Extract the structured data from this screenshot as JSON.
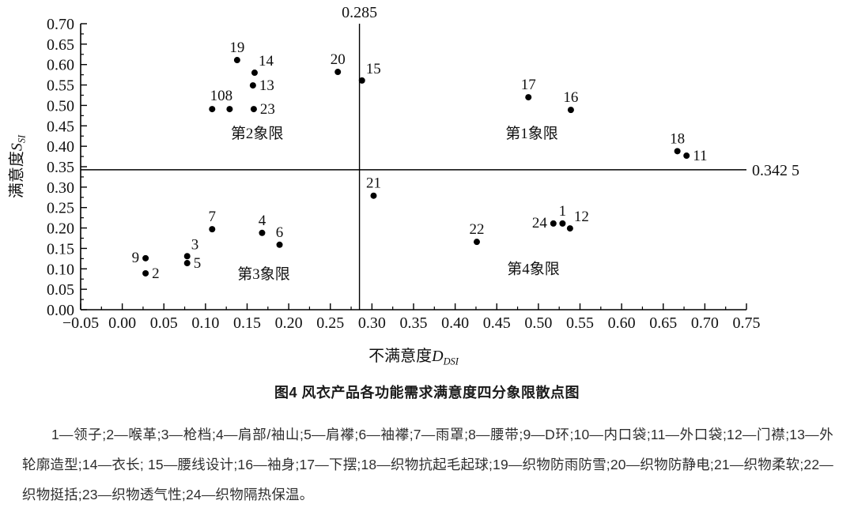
{
  "chart_data": {
    "type": "scatter",
    "title": "图4 风衣产品各功能需求满意度四分象限散点图",
    "xlabel": {
      "text": "不满意度",
      "var": "D",
      "sub": "DSI"
    },
    "ylabel": {
      "text": "满意度",
      "var": "S",
      "sub": "SI"
    },
    "xlim": [
      -0.05,
      0.75
    ],
    "ylim": [
      0.0,
      0.7
    ],
    "x_ticks": [
      {
        "v": -0.05,
        "label": "−0.05"
      },
      {
        "v": 0.0,
        "label": "0.00"
      },
      {
        "v": 0.05,
        "label": "0.05"
      },
      {
        "v": 0.1,
        "label": "0.10"
      },
      {
        "v": 0.15,
        "label": "0.15"
      },
      {
        "v": 0.2,
        "label": "0.20"
      },
      {
        "v": 0.25,
        "label": "0.25"
      },
      {
        "v": 0.3,
        "label": "0.30"
      },
      {
        "v": 0.35,
        "label": "0.35"
      },
      {
        "v": 0.4,
        "label": "0.40"
      },
      {
        "v": 0.45,
        "label": "0.45"
      },
      {
        "v": 0.5,
        "label": "0.50"
      },
      {
        "v": 0.55,
        "label": "0.55"
      },
      {
        "v": 0.6,
        "label": "0.60"
      },
      {
        "v": 0.65,
        "label": "0.65"
      },
      {
        "v": 0.7,
        "label": "0.70"
      },
      {
        "v": 0.75,
        "label": "0.75"
      }
    ],
    "y_ticks": [
      {
        "v": 0.0,
        "label": "0.00"
      },
      {
        "v": 0.05,
        "label": "0.05"
      },
      {
        "v": 0.1,
        "label": "0.10"
      },
      {
        "v": 0.15,
        "label": "0.15"
      },
      {
        "v": 0.2,
        "label": "0.20"
      },
      {
        "v": 0.25,
        "label": "0.25"
      },
      {
        "v": 0.3,
        "label": "0.30"
      },
      {
        "v": 0.35,
        "label": "0.35"
      },
      {
        "v": 0.4,
        "label": "0.40"
      },
      {
        "v": 0.45,
        "label": "0.45"
      },
      {
        "v": 0.5,
        "label": "0.50"
      },
      {
        "v": 0.55,
        "label": "0.55"
      },
      {
        "v": 0.6,
        "label": "0.60"
      },
      {
        "v": 0.65,
        "label": "0.65"
      },
      {
        "v": 0.7,
        "label": "0.70"
      }
    ],
    "ref_lines": {
      "vertical": {
        "x": 0.285,
        "label": "0.285"
      },
      "horizontal": {
        "y": 0.3425,
        "label": "0.342 5"
      }
    },
    "quadrant_labels": [
      {
        "text": "第1象限",
        "x": 0.492,
        "y": 0.433
      },
      {
        "text": "第2象限",
        "x": 0.162,
        "y": 0.433
      },
      {
        "text": "第3象限",
        "x": 0.17,
        "y": 0.089
      },
      {
        "text": "第4象限",
        "x": 0.494,
        "y": 0.102
      }
    ],
    "annotations": [
      {
        "text": "108",
        "x": 0.119,
        "y": 0.526
      }
    ],
    "points": [
      {
        "id": "1",
        "x": 0.529,
        "y": 0.211,
        "label_pos": "above"
      },
      {
        "id": "2",
        "x": 0.028,
        "y": 0.089,
        "label_pos": "right"
      },
      {
        "id": "3",
        "x": 0.078,
        "y": 0.131,
        "label_pos": "above-right"
      },
      {
        "id": "4",
        "x": 0.168,
        "y": 0.188,
        "label_pos": "above"
      },
      {
        "id": "5",
        "x": 0.078,
        "y": 0.114,
        "label_pos": "right"
      },
      {
        "id": "6",
        "x": 0.189,
        "y": 0.159,
        "label_pos": "above"
      },
      {
        "id": "7",
        "x": 0.108,
        "y": 0.197,
        "label_pos": "above"
      },
      {
        "id": "8",
        "x": 0.129,
        "y": 0.491,
        "label_pos": "none"
      },
      {
        "id": "9",
        "x": 0.028,
        "y": 0.126,
        "label_pos": "left"
      },
      {
        "id": "10",
        "x": 0.108,
        "y": 0.491,
        "label_pos": "none"
      },
      {
        "id": "11",
        "x": 0.678,
        "y": 0.377,
        "label_pos": "right"
      },
      {
        "id": "12",
        "x": 0.538,
        "y": 0.199,
        "label_pos": "above-right"
      },
      {
        "id": "13",
        "x": 0.157,
        "y": 0.549,
        "label_pos": "right"
      },
      {
        "id": "14",
        "x": 0.159,
        "y": 0.58,
        "label_pos": "above-right"
      },
      {
        "id": "15",
        "x": 0.288,
        "y": 0.561,
        "label_pos": "above-right"
      },
      {
        "id": "16",
        "x": 0.539,
        "y": 0.489,
        "label_pos": "above"
      },
      {
        "id": "17",
        "x": 0.488,
        "y": 0.52,
        "label_pos": "above"
      },
      {
        "id": "18",
        "x": 0.667,
        "y": 0.388,
        "label_pos": "above"
      },
      {
        "id": "19",
        "x": 0.138,
        "y": 0.611,
        "label_pos": "above"
      },
      {
        "id": "20",
        "x": 0.259,
        "y": 0.582,
        "label_pos": "above"
      },
      {
        "id": "21",
        "x": 0.302,
        "y": 0.279,
        "label_pos": "above"
      },
      {
        "id": "22",
        "x": 0.426,
        "y": 0.166,
        "label_pos": "above"
      },
      {
        "id": "23",
        "x": 0.158,
        "y": 0.491,
        "label_pos": "right"
      },
      {
        "id": "24",
        "x": 0.518,
        "y": 0.211,
        "label_pos": "left"
      }
    ],
    "colors": {
      "point": "#000000",
      "axis": "#000000",
      "text": "#111111"
    }
  },
  "figure": {
    "caption": "图4 风衣产品各功能需求满意度四分象限散点图",
    "note": "1—领子;2—喉革;3—枪档;4—肩部/袖山;5—肩襻;6—袖襻;7—雨罩;8—腰带;9—D环;10—内口袋;11—外口袋;12—门襟;13—外轮廓造型;14—衣长; 15—腰线设计;16—袖身;17—下摆;18—织物抗起毛起球;19—织物防雨防雪;20—织物防静电;21—织物柔软;22—织物挺括;23—织物透气性;24—织物隔热保温。"
  }
}
